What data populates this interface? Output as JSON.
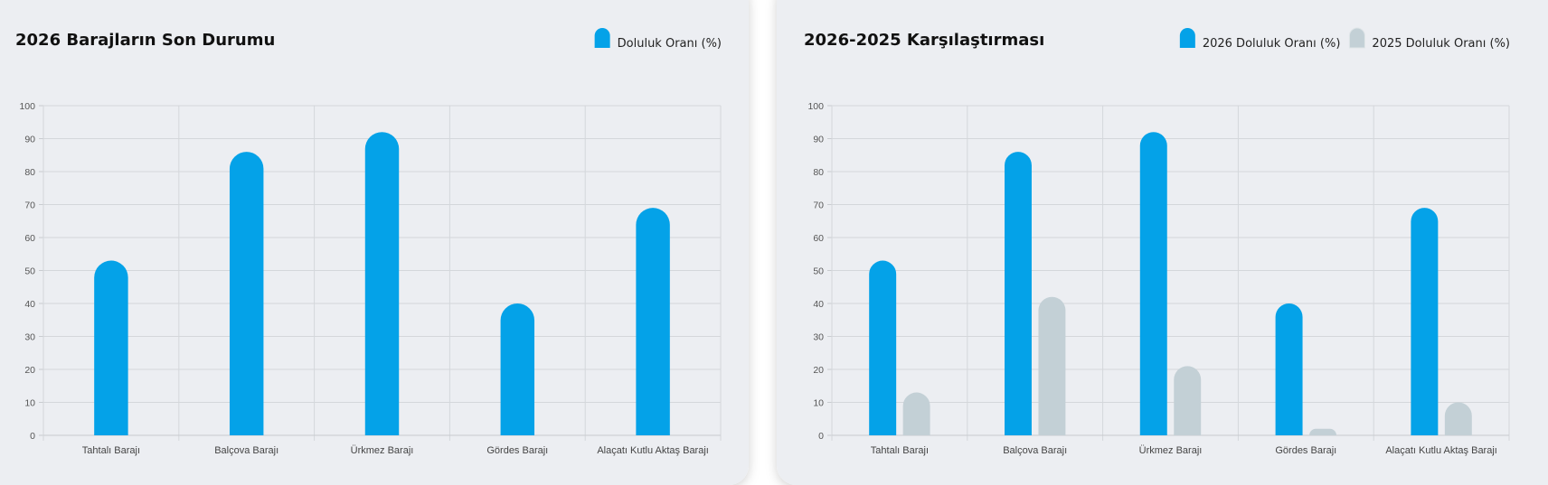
{
  "chart_data": [
    {
      "type": "bar",
      "title": "2026 Barajların Son Durumu",
      "categories": [
        "Tahtalı Barajı",
        "Balçova Barajı",
        "Ürkmez Barajı",
        "Gördes Barajı",
        "Alaçatı Kutlu Aktaş Barajı"
      ],
      "series": [
        {
          "name": "Doluluk Oranı (%)",
          "color": "#04a2e8",
          "values": [
            53,
            86,
            92,
            40,
            69
          ]
        }
      ],
      "ylim": [
        0,
        100
      ],
      "yticks": [
        0,
        10,
        20,
        30,
        40,
        50,
        60,
        70,
        80,
        90,
        100
      ],
      "grid": true,
      "legend": "top-right"
    },
    {
      "type": "bar",
      "title": "2026-2025 Karşılaştırması",
      "categories": [
        "Tahtalı Barajı",
        "Balçova Barajı",
        "Ürkmez Barajı",
        "Gördes Barajı",
        "Alaçatı Kutlu Aktaş Barajı"
      ],
      "series": [
        {
          "name": "2026 Doluluk Oranı (%)",
          "color": "#04a2e8",
          "values": [
            53,
            86,
            92,
            40,
            69
          ]
        },
        {
          "name": "2025 Doluluk Oranı (%)",
          "color": "#c3d0d6",
          "values": [
            13,
            42,
            21,
            2,
            10
          ]
        }
      ],
      "ylim": [
        0,
        100
      ],
      "yticks": [
        0,
        10,
        20,
        30,
        40,
        50,
        60,
        70,
        80,
        90,
        100
      ],
      "grid": true,
      "legend": "top-right"
    }
  ]
}
